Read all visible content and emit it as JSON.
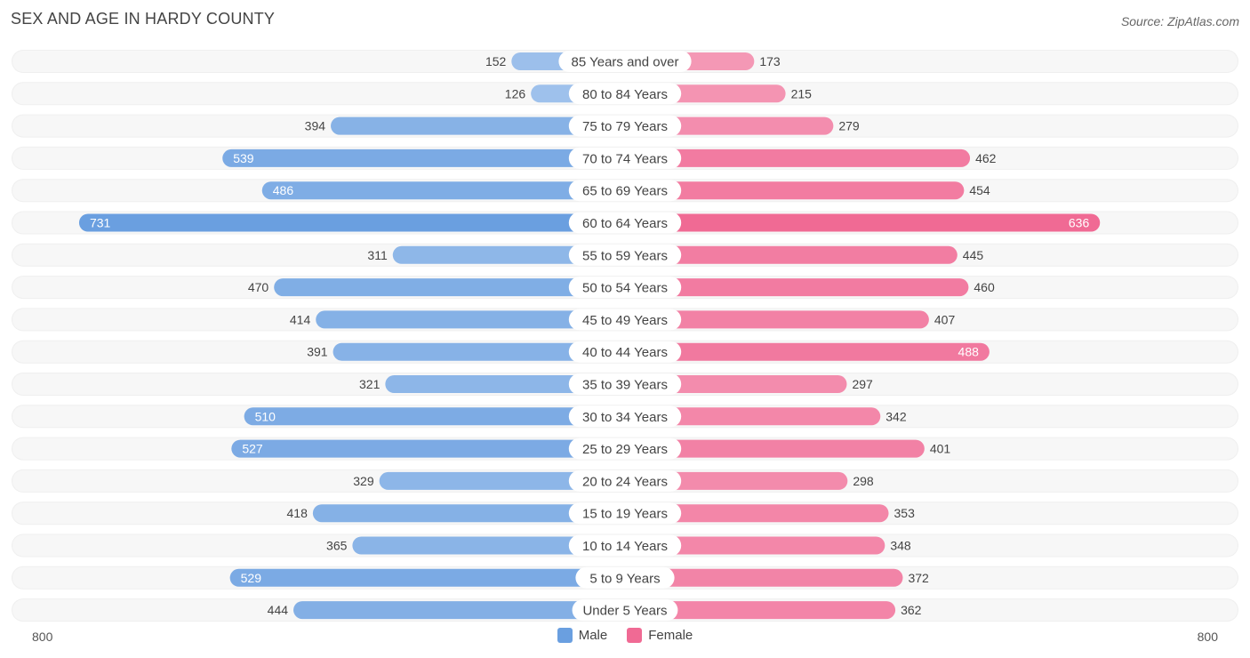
{
  "title": "SEX AND AGE IN HARDY COUNTY",
  "source": "Source: ZipAtlas.com",
  "axis": {
    "left_label": "800",
    "right_label": "800"
  },
  "legend": {
    "male": "Male",
    "female": "Female"
  },
  "colors": {
    "male_light": "#a9c8ee",
    "male_dark": "#6a9fe0",
    "female_light": "#f6a9c2",
    "female_dark": "#f06a94",
    "row_bg": "#efefef"
  },
  "chart_data": {
    "type": "bar",
    "categories": [
      "85 Years and over",
      "80 to 84 Years",
      "75 to 79 Years",
      "70 to 74 Years",
      "65 to 69 Years",
      "60 to 64 Years",
      "55 to 59 Years",
      "50 to 54 Years",
      "45 to 49 Years",
      "40 to 44 Years",
      "35 to 39 Years",
      "30 to 34 Years",
      "25 to 29 Years",
      "20 to 24 Years",
      "15 to 19 Years",
      "10 to 14 Years",
      "5 to 9 Years",
      "Under 5 Years"
    ],
    "series": [
      {
        "name": "Male",
        "values": [
          152,
          126,
          394,
          539,
          486,
          731,
          311,
          470,
          414,
          391,
          321,
          510,
          527,
          329,
          418,
          365,
          529,
          444
        ]
      },
      {
        "name": "Female",
        "values": [
          173,
          215,
          279,
          462,
          454,
          636,
          445,
          460,
          407,
          488,
          297,
          342,
          401,
          298,
          353,
          348,
          372,
          362
        ]
      }
    ],
    "xlim": [
      -800,
      800
    ],
    "title": "SEX AND AGE IN HARDY COUNTY"
  }
}
